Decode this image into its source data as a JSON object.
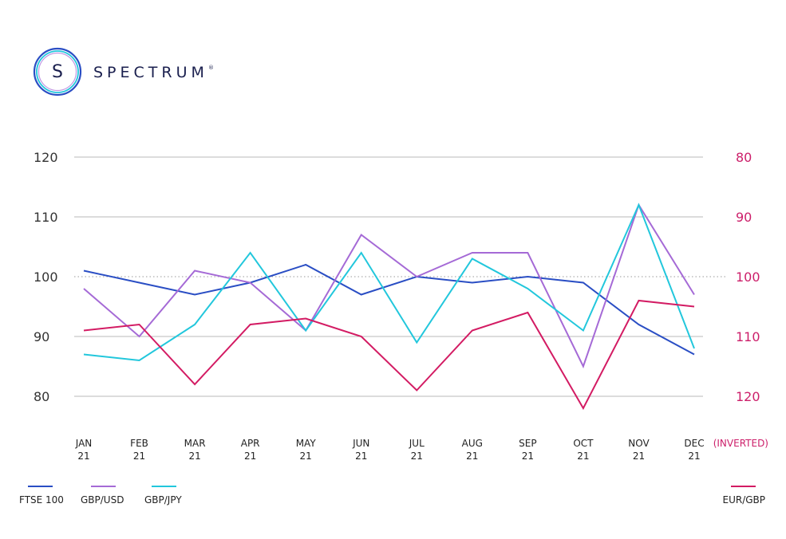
{
  "brand": {
    "name": "SPECTRUM",
    "registered": "®",
    "logo_letter": "S"
  },
  "chart_data": {
    "type": "line",
    "categories": [
      [
        "JAN",
        "21"
      ],
      [
        "FEB",
        "21"
      ],
      [
        "MAR",
        "21"
      ],
      [
        "APR",
        "21"
      ],
      [
        "MAY",
        "21"
      ],
      [
        "JUN",
        "21"
      ],
      [
        "JUL",
        "21"
      ],
      [
        "AUG",
        "21"
      ],
      [
        "SEP",
        "21"
      ],
      [
        "OCT",
        "21"
      ],
      [
        "NOV",
        "21"
      ],
      [
        "DEC",
        "21"
      ]
    ],
    "y_left": {
      "ticks": [
        80,
        90,
        100,
        110,
        120
      ],
      "range": [
        80,
        120
      ]
    },
    "y_right": {
      "ticks": [
        80,
        90,
        100,
        110,
        120
      ],
      "range": [
        80,
        120
      ],
      "inverted": true,
      "label": "(INVERTED)"
    },
    "reference_line": {
      "value": 100,
      "style": "dotted"
    },
    "grid": true,
    "series": [
      {
        "name": "FTSE 100",
        "axis": "left",
        "color": "#2a4ec4",
        "values": [
          101,
          99,
          97,
          99,
          102,
          97,
          100,
          99,
          100,
          99,
          92,
          87
        ]
      },
      {
        "name": "GBP/USD",
        "axis": "left",
        "color": "#a56ad6",
        "values": [
          98,
          90,
          101,
          99,
          91,
          107,
          100,
          104,
          104,
          85,
          112,
          97
        ]
      },
      {
        "name": "GBP/JPY",
        "axis": "left",
        "color": "#22c7dc",
        "values": [
          87,
          86,
          92,
          104,
          91,
          104,
          89,
          103,
          98,
          91,
          112,
          88
        ]
      },
      {
        "name": "EUR/GBP",
        "axis": "right",
        "color": "#d31b63",
        "values": [
          109,
          108,
          118,
          108,
          107,
          110,
          119,
          109,
          106,
          122,
          104,
          105
        ]
      }
    ],
    "legend": {
      "placement": "bottom"
    }
  }
}
